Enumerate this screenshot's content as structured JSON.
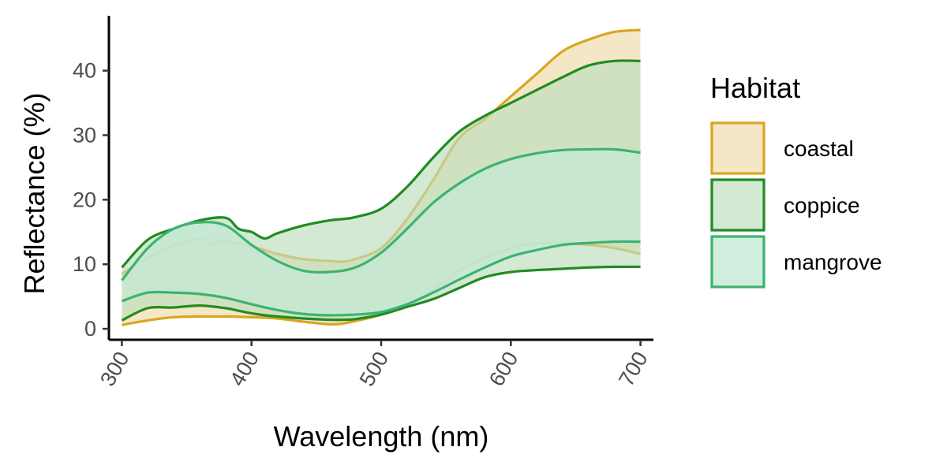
{
  "chart_data": {
    "type": "area",
    "xlabel": "Wavelength (nm)",
    "ylabel": "Reflectance (%)",
    "xlim": [
      290,
      710
    ],
    "ylim": [
      -1.7,
      48.5
    ],
    "x_ticks": [
      300,
      400,
      500,
      600,
      700
    ],
    "x_tick_labels": [
      "300",
      "400",
      "500",
      "600",
      "700"
    ],
    "y_ticks": [
      0,
      10,
      20,
      30,
      40
    ],
    "y_tick_labels": [
      "0",
      "10",
      "20",
      "30",
      "40"
    ],
    "x_tick_rotation_deg": -60,
    "grid": false,
    "legend": {
      "title": "Habitat",
      "position": "right"
    },
    "series": [
      {
        "name": "coastal",
        "color": "#DAA520",
        "fill": "#F3E3BC",
        "fill_opacity": 0.85,
        "x": [
          300,
          320,
          340,
          360,
          370,
          380,
          400,
          420,
          440,
          460,
          470,
          480,
          500,
          520,
          540,
          560,
          580,
          600,
          620,
          640,
          660,
          680,
          700
        ],
        "upper": [
          8.5,
          11.0,
          13.0,
          14.0,
          13.2,
          13.6,
          12.8,
          11.6,
          10.8,
          10.5,
          10.4,
          10.8,
          12.5,
          17.0,
          23.0,
          29.5,
          32.5,
          36.0,
          39.5,
          43.0,
          44.8,
          46.0,
          46.3
        ],
        "lower": [
          0.6,
          1.3,
          1.8,
          1.9,
          1.9,
          1.9,
          1.8,
          1.6,
          1.1,
          0.7,
          0.8,
          1.2,
          2.2,
          3.8,
          6.0,
          9.0,
          11.0,
          12.5,
          13.2,
          13.3,
          13.0,
          12.5,
          11.6
        ]
      },
      {
        "name": "coppice",
        "color": "#228B22",
        "fill": "#BBDDBB",
        "fill_opacity": 0.65,
        "x": [
          300,
          320,
          340,
          360,
          380,
          390,
          400,
          410,
          420,
          440,
          460,
          470,
          480,
          500,
          520,
          540,
          560,
          580,
          600,
          620,
          640,
          660,
          680,
          700
        ],
        "upper": [
          9.5,
          13.8,
          15.5,
          16.8,
          17.2,
          15.5,
          15.0,
          14.0,
          14.8,
          16.0,
          16.8,
          17.0,
          17.3,
          18.6,
          22.0,
          26.5,
          30.5,
          33.0,
          35.0,
          37.0,
          39.0,
          40.8,
          41.5,
          41.5
        ],
        "lower": [
          1.3,
          3.2,
          3.3,
          3.6,
          3.2,
          2.8,
          2.4,
          2.1,
          1.9,
          1.6,
          1.4,
          1.4,
          1.5,
          2.2,
          3.4,
          4.6,
          6.3,
          8.0,
          8.8,
          9.1,
          9.3,
          9.5,
          9.6,
          9.6
        ]
      },
      {
        "name": "mangrove",
        "color": "#3CB371",
        "fill": "#C4E9D5",
        "fill_opacity": 0.8,
        "x": [
          300,
          320,
          340,
          360,
          380,
          400,
          420,
          440,
          460,
          480,
          500,
          520,
          540,
          560,
          580,
          600,
          620,
          640,
          660,
          680,
          700
        ],
        "upper": [
          7.5,
          12.5,
          15.5,
          16.5,
          16.0,
          13.0,
          10.5,
          9.0,
          8.8,
          9.5,
          11.8,
          15.5,
          19.5,
          22.5,
          24.8,
          26.3,
          27.2,
          27.7,
          27.8,
          27.8,
          27.3
        ],
        "lower": [
          4.3,
          5.6,
          5.6,
          5.4,
          4.8,
          3.8,
          2.9,
          2.3,
          2.1,
          2.2,
          2.6,
          3.8,
          5.6,
          7.6,
          9.5,
          11.2,
          12.2,
          13.0,
          13.3,
          13.5,
          13.5
        ]
      }
    ]
  }
}
